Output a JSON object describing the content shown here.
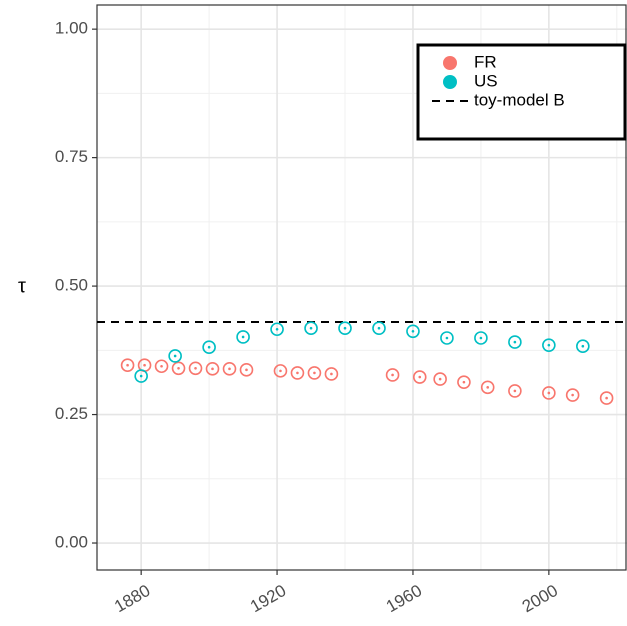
{
  "chart_data": {
    "type": "scatter",
    "ylabel": "τ",
    "xlim": [
      1867,
      2023
    ],
    "ylim": [
      -0.0525,
      1.047
    ],
    "xticks": [
      1880,
      1920,
      1960,
      2000
    ],
    "yticks": [
      {
        "value": 0,
        "label": "0.00"
      },
      {
        "value": 0.25,
        "label": "0.25"
      },
      {
        "value": 0.5,
        "label": "0.50"
      },
      {
        "value": 0.75,
        "label": "0.75"
      },
      {
        "value": 1,
        "label": "1.00"
      }
    ],
    "xminor": [
      1900,
      1940,
      1980,
      2020
    ],
    "yminor": [
      0.125,
      0.375,
      0.625,
      0.875
    ],
    "grid": true,
    "legend": "top-right",
    "series": [
      {
        "name": "FR",
        "color": "#F8766D",
        "x": [
          1876,
          1881,
          1886,
          1891,
          1896,
          1901,
          1906,
          1911,
          1921,
          1926,
          1931,
          1936,
          1954,
          1962,
          1968,
          1975,
          1982,
          1990,
          2000,
          2007,
          2017
        ],
        "values": [
          0.346,
          0.346,
          0.344,
          0.34,
          0.34,
          0.339,
          0.339,
          0.337,
          0.335,
          0.331,
          0.331,
          0.329,
          0.327,
          0.323,
          0.319,
          0.313,
          0.303,
          0.296,
          0.292,
          0.288,
          0.282
        ]
      },
      {
        "name": "US",
        "color": "#00BFC4",
        "x": [
          1880,
          1890,
          1900,
          1910,
          1920,
          1930,
          1940,
          1950,
          1960,
          1970,
          1980,
          1990,
          2000,
          2010
        ],
        "values": [
          0.325,
          0.364,
          0.381,
          0.401,
          0.416,
          0.418,
          0.418,
          0.418,
          0.412,
          0.399,
          0.399,
          0.391,
          0.385,
          0.383
        ]
      }
    ],
    "reference_lines": [
      {
        "name": "toy-model B",
        "y": 0.43,
        "color": "#000000",
        "style": "dashed"
      }
    ]
  }
}
